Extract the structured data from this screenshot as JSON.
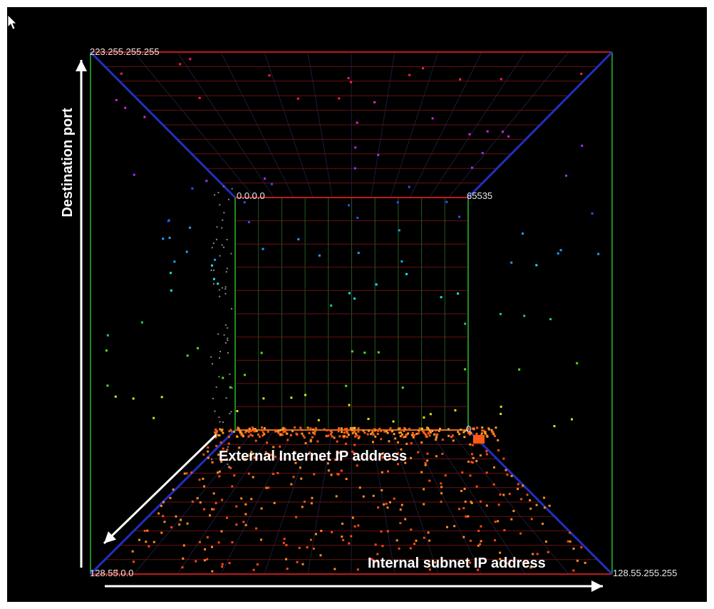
{
  "scene": {
    "background": "#000000",
    "frame_color": "#ffffff",
    "colors": {
      "grid": "#6a1010",
      "edge_red": "#c01818",
      "edge_blue": "#2030c0",
      "edge_green": "#1f8a1f",
      "axis_white": "#ffffff"
    }
  },
  "corner_labels": {
    "top_left": "223.255.255.255",
    "inner_top_left": "0.0.0.0",
    "inner_top_right": "65535",
    "inner_bottom_right": "0",
    "bottom_left": "128.55.0.0",
    "bottom_right": "128.55.255.255"
  },
  "annotations": {
    "y_axis": "Destination port",
    "depth_axis": "External Internet IP address",
    "x_axis": "Internal subnet IP address"
  },
  "icons": {
    "cursor": "mouse-pointer-icon"
  }
}
